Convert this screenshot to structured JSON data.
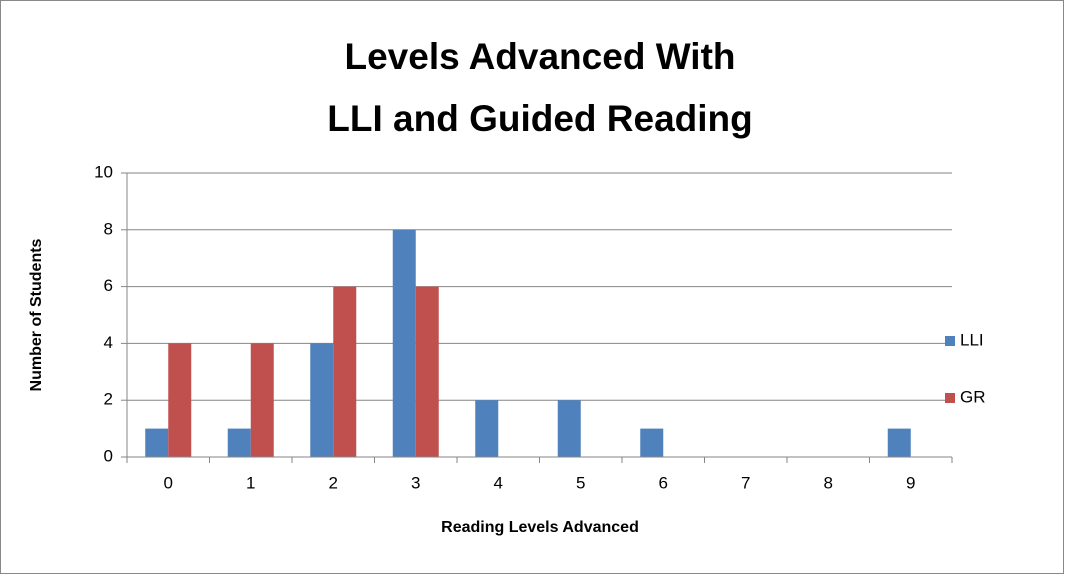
{
  "chart_data": {
    "type": "bar",
    "title": [
      "Levels Advanced With",
      "LLI and Guided Reading"
    ],
    "x_label": "Reading Levels Advanced",
    "y_label": "Number of Students",
    "categories": [
      "0",
      "1",
      "2",
      "3",
      "4",
      "5",
      "6",
      "7",
      "8",
      "9"
    ],
    "series": [
      {
        "name": "LLI",
        "color": "#4f81bd",
        "values": [
          1,
          1,
          4,
          8,
          2,
          2,
          1,
          0,
          0,
          1
        ]
      },
      {
        "name": "GR",
        "color": "#c0504d",
        "values": [
          4,
          4,
          6,
          6,
          0,
          0,
          0,
          0,
          0,
          0
        ]
      }
    ],
    "ylim": [
      0,
      10
    ],
    "yticks": [
      0,
      2,
      4,
      6,
      8,
      10
    ],
    "grid": true,
    "legend": "right"
  }
}
